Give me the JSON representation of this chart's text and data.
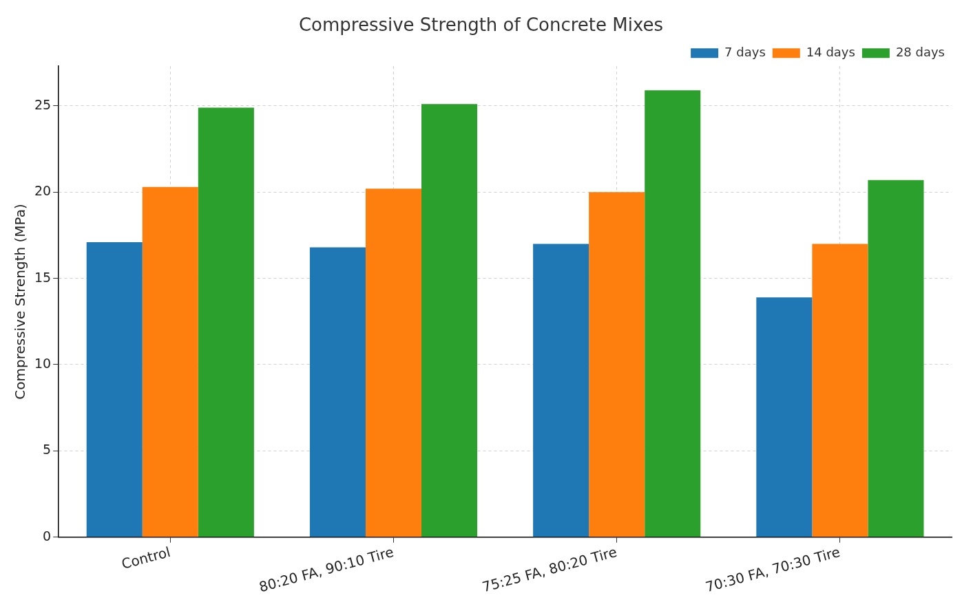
{
  "chart_data": {
    "type": "bar",
    "title": "Compressive Strength of Concrete Mixes",
    "ylabel": "Compressive Strength (MPa)",
    "categories": [
      "Control",
      "80:20 FA, 90:10 Tire",
      "75:25 FA, 80:20 Tire",
      "70:30 FA, 70:30 Tire"
    ],
    "series": [
      {
        "name": "7 days",
        "color": "#1f77b4",
        "values": [
          17.1,
          16.8,
          17.0,
          13.9
        ]
      },
      {
        "name": "14 days",
        "color": "#ff7f0e",
        "values": [
          20.3,
          20.2,
          20.0,
          17.0
        ]
      },
      {
        "name": "28 days",
        "color": "#2ca02c",
        "values": [
          24.9,
          25.1,
          25.9,
          20.7
        ]
      }
    ],
    "ylim": [
      0,
      27.3
    ],
    "yticks": [
      0,
      5,
      10,
      15,
      20,
      25
    ],
    "grid": true,
    "legend": "top right"
  }
}
